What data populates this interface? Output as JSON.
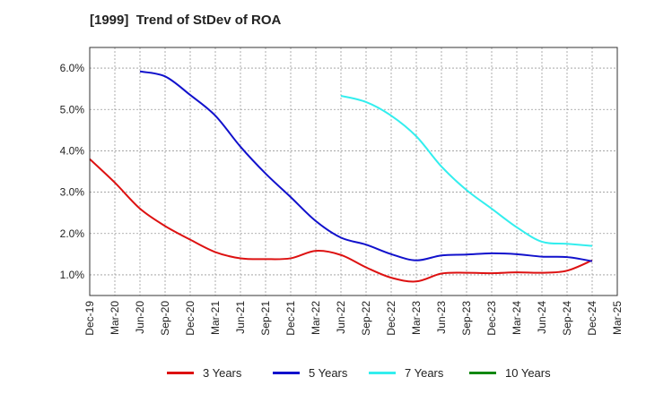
{
  "chart_data": {
    "type": "line",
    "title": "[1999]  Trend of StDev of ROA",
    "xlabel": "",
    "ylabel": "",
    "ylim": [
      0.5,
      6.5
    ],
    "yticks": [
      1.0,
      2.0,
      3.0,
      4.0,
      5.0,
      6.0
    ],
    "ytick_labels": [
      "1.0%",
      "2.0%",
      "3.0%",
      "4.0%",
      "5.0%",
      "6.0%"
    ],
    "x_categories": [
      "Dec-19",
      "Mar-20",
      "Jun-20",
      "Sep-20",
      "Dec-20",
      "Mar-21",
      "Jun-21",
      "Sep-21",
      "Dec-21",
      "Mar-22",
      "Jun-22",
      "Sep-22",
      "Dec-22",
      "Mar-23",
      "Jun-23",
      "Sep-23",
      "Dec-23",
      "Mar-24",
      "Jun-24",
      "Sep-24",
      "Dec-24",
      "Mar-25"
    ],
    "grid": true,
    "legend_position": "bottom",
    "series": [
      {
        "name": "3 Years",
        "color": "#dd1111",
        "values": [
          3.8,
          3.23,
          2.6,
          2.18,
          1.85,
          1.55,
          1.4,
          1.38,
          1.4,
          1.58,
          1.48,
          1.18,
          0.93,
          0.84,
          1.03,
          1.05,
          1.04,
          1.06,
          1.05,
          1.1,
          1.35,
          null
        ]
      },
      {
        "name": "5 Years",
        "color": "#1111cc",
        "values": [
          null,
          null,
          5.92,
          5.8,
          5.35,
          4.85,
          4.1,
          3.45,
          2.88,
          2.3,
          1.9,
          1.73,
          1.5,
          1.35,
          1.47,
          1.49,
          1.52,
          1.5,
          1.44,
          1.43,
          1.33,
          null
        ]
      },
      {
        "name": "7 Years",
        "color": "#33eeee",
        "values": [
          null,
          null,
          null,
          null,
          null,
          null,
          null,
          null,
          null,
          null,
          5.33,
          5.18,
          4.85,
          4.35,
          3.62,
          3.05,
          2.6,
          2.15,
          1.8,
          1.75,
          1.7,
          null
        ]
      },
      {
        "name": "10 Years",
        "color": "#118811",
        "values": [
          null,
          null,
          null,
          null,
          null,
          null,
          null,
          null,
          null,
          null,
          null,
          null,
          null,
          null,
          null,
          null,
          null,
          null,
          null,
          null,
          null,
          null
        ]
      }
    ]
  }
}
